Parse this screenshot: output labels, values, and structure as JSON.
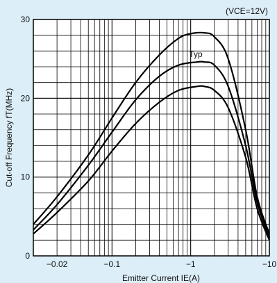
{
  "chart_data": {
    "type": "line",
    "condition": "(VCE=12V)",
    "annotation": "Typ",
    "xlabel": "Emitter Current IE(A)",
    "ylabel": "Cut-off Frequency fT(MHz)",
    "x_scale": "log",
    "xlim": [
      0.01,
      10
    ],
    "ylim": [
      0,
      30
    ],
    "xtick_labels": [
      {
        "x": 0.02,
        "label": "−0.02"
      },
      {
        "x": 0.1,
        "label": "−0.1"
      },
      {
        "x": 1,
        "label": "−1"
      },
      {
        "x": 10,
        "label": "−10"
      }
    ],
    "ytick_labels": [
      {
        "y": 0,
        "label": "0"
      },
      {
        "y": 10,
        "label": "10"
      },
      {
        "y": 20,
        "label": "20"
      },
      {
        "y": 30,
        "label": "30"
      }
    ],
    "grid": true,
    "series": [
      {
        "points": [
          [
            0.01,
            4
          ],
          [
            0.02,
            7.5
          ],
          [
            0.05,
            12.8
          ],
          [
            0.1,
            17.5
          ],
          [
            0.2,
            22
          ],
          [
            0.4,
            25.5
          ],
          [
            0.7,
            27.6
          ],
          [
            1,
            28.2
          ],
          [
            1.5,
            28.3
          ],
          [
            2,
            27.8
          ],
          [
            3,
            25
          ],
          [
            5,
            16
          ],
          [
            7,
            7.5
          ],
          [
            10,
            2.8
          ]
        ]
      },
      {
        "points": [
          [
            0.01,
            3.3
          ],
          [
            0.02,
            6.5
          ],
          [
            0.05,
            11.5
          ],
          [
            0.1,
            15.7
          ],
          [
            0.2,
            19.8
          ],
          [
            0.4,
            22.8
          ],
          [
            0.7,
            24.2
          ],
          [
            1.2,
            24.6
          ],
          [
            1.5,
            24.6
          ],
          [
            2,
            24.2
          ],
          [
            3,
            21.5
          ],
          [
            5,
            14
          ],
          [
            7,
            6.8
          ],
          [
            10,
            2.3
          ]
        ]
      },
      {
        "points": [
          [
            0.01,
            2.8
          ],
          [
            0.02,
            5.5
          ],
          [
            0.05,
            9.5
          ],
          [
            0.1,
            13.3
          ],
          [
            0.2,
            16.8
          ],
          [
            0.4,
            19.5
          ],
          [
            0.7,
            21
          ],
          [
            1.2,
            21.5
          ],
          [
            1.5,
            21.5
          ],
          [
            2,
            21
          ],
          [
            3,
            18.8
          ],
          [
            5,
            12.5
          ],
          [
            7,
            6
          ],
          [
            10,
            2
          ]
        ]
      }
    ]
  }
}
